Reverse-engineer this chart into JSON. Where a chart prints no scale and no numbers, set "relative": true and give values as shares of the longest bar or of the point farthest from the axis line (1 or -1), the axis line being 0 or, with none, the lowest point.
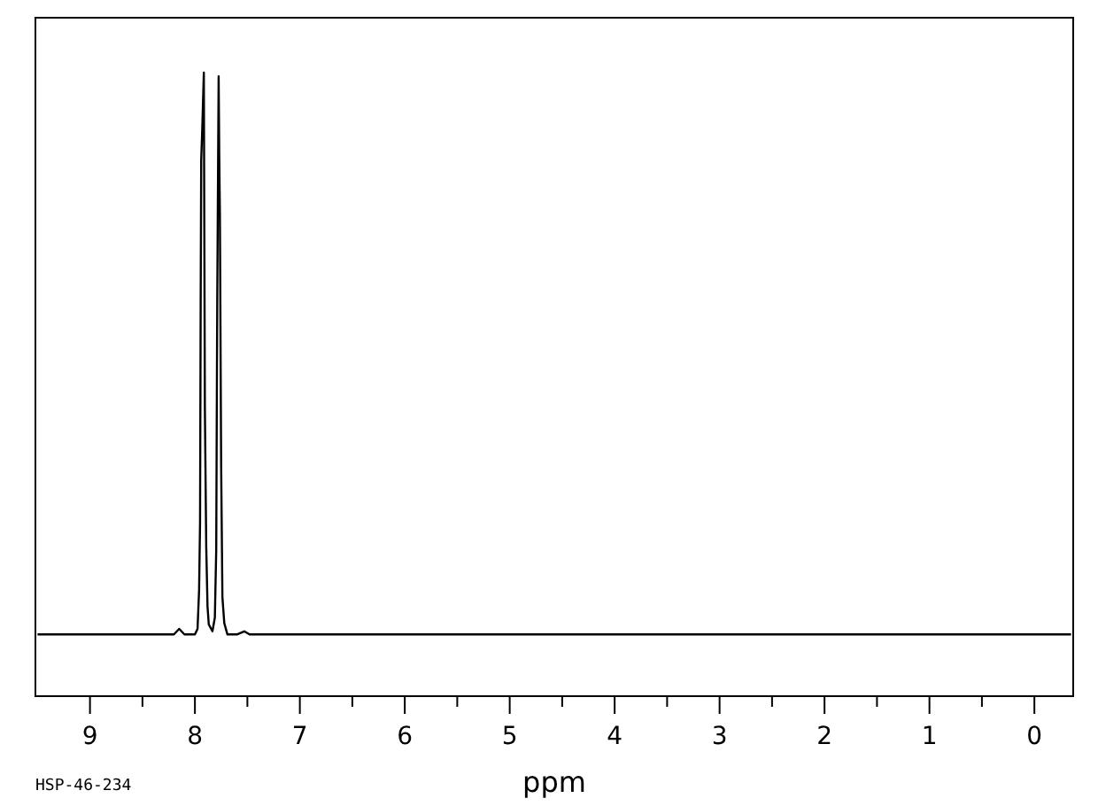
{
  "chart_data": {
    "type": "line",
    "relative": true,
    "xlabel": "ppm",
    "annotations": [
      "HSP-46-234"
    ],
    "xlim": [
      9.52,
      -0.37
    ],
    "xticks": [
      9,
      8,
      7,
      6,
      5,
      4,
      3,
      2,
      1,
      0
    ],
    "series": [
      {
        "color": "#000000",
        "x": [
          9.5,
          8.2,
          8.15,
          8.1,
          8.0,
          7.975,
          7.96,
          7.951,
          7.945,
          7.94,
          7.93,
          7.915,
          7.905,
          7.892,
          7.88,
          7.868,
          7.833,
          7.81,
          7.797,
          7.787,
          7.774,
          7.768,
          7.762,
          7.75,
          7.738,
          7.72,
          7.69,
          7.6,
          7.53,
          7.48,
          -0.35
        ],
        "values": [
          0.099,
          0.099,
          0.108,
          0.099,
          0.099,
          0.108,
          0.171,
          0.279,
          0.64,
          0.86,
          0.91,
          1,
          0.46,
          0.239,
          0.144,
          0.115,
          0.104,
          0.126,
          0.234,
          0.64,
          0.994,
          0.865,
          0.776,
          0.37,
          0.159,
          0.117,
          0.099,
          0.099,
          0.104,
          0.099,
          0.099
        ]
      }
    ]
  }
}
